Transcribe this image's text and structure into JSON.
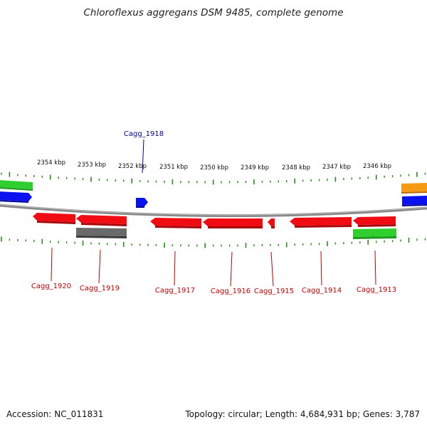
{
  "title": "Chloroflexus aggregans DSM 9485, complete genome",
  "footer": {
    "accession": "Accession: NC_011831",
    "stats": "Topology: circular; Length: 4,684,931 bp; Genes: 3,787"
  },
  "scale_labels": [
    "2354 kbp",
    "2353 kbp",
    "2352 kbp",
    "2351 kbp",
    "2350 kbp",
    "2349 kbp",
    "2348 kbp",
    "2347 kbp",
    "2346 kbp"
  ],
  "genes": [
    {
      "id": "Cagg_1920",
      "color": "#e8101a"
    },
    {
      "id": "Cagg_1919",
      "color": "#e8101a"
    },
    {
      "id": "Cagg_1918",
      "color": "#1010d0"
    },
    {
      "id": "Cagg_1917",
      "color": "#e8101a"
    },
    {
      "id": "Cagg_1916",
      "color": "#e8101a"
    },
    {
      "id": "Cagg_1915",
      "color": "#e8101a"
    },
    {
      "id": "Cagg_1914",
      "color": "#e8101a"
    },
    {
      "id": "Cagg_1913",
      "color": "#e8101a"
    }
  ],
  "colors": {
    "red": "#f00c12",
    "blue": "#0a12f0",
    "green": "#2fcf2f",
    "gray": "#6a6a6a",
    "orange": "#f59a14",
    "tick": "#2a8a1a",
    "backbone": "#8a8a8a",
    "label_red": "#c00000",
    "label_blue": "#00008b"
  }
}
